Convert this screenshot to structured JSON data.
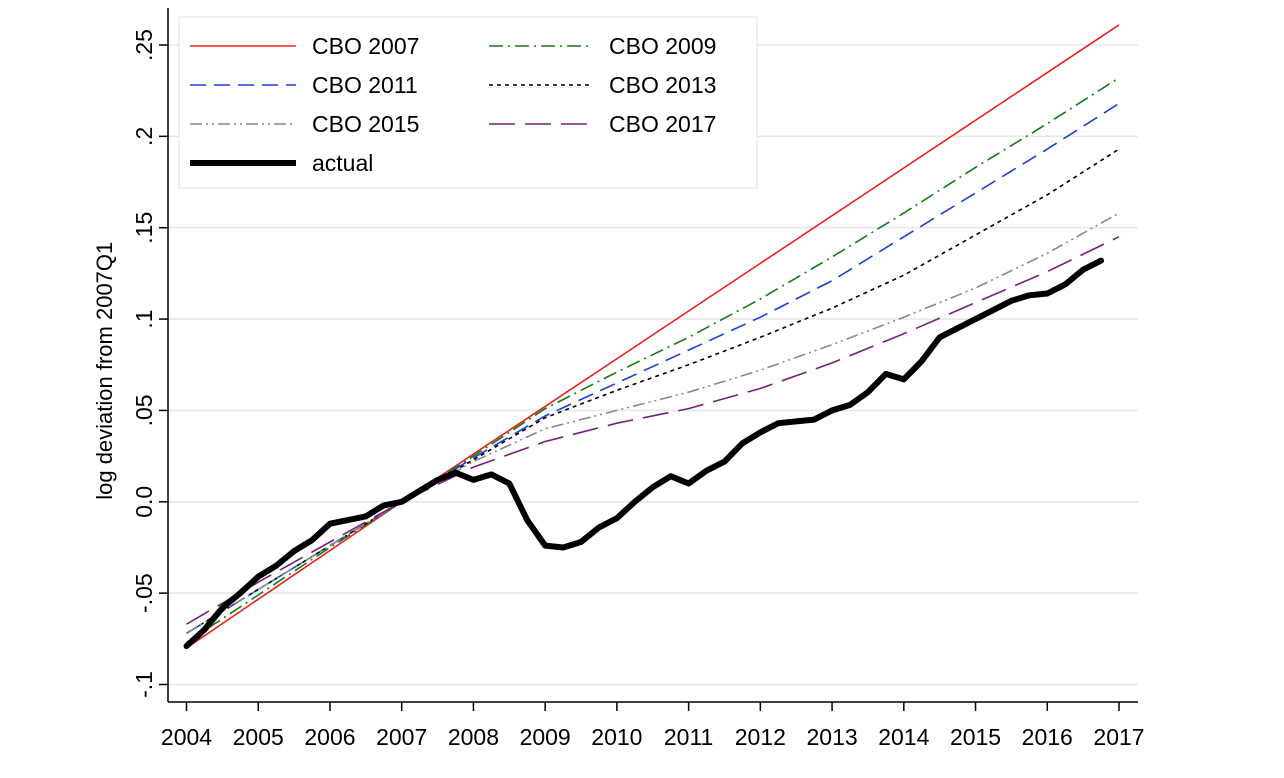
{
  "chart_data": {
    "type": "line",
    "title": "",
    "xlabel": "",
    "ylabel": "log deviation from 2007Q1",
    "xlim": [
      2004,
      2017
    ],
    "ylim": [
      -0.1,
      0.25
    ],
    "x_ticks": [
      2004,
      2005,
      2006,
      2007,
      2008,
      2009,
      2010,
      2011,
      2012,
      2013,
      2014,
      2015,
      2016,
      2017
    ],
    "x_tick_labels": [
      "2004",
      "2005",
      "2006",
      "2007",
      "2008",
      "2009",
      "2010",
      "2011",
      "2012",
      "2013",
      "2014",
      "2015",
      "2016",
      "2017"
    ],
    "y_ticks": [
      -0.1,
      -0.05,
      0,
      0.05,
      0.1,
      0.15,
      0.2,
      0.25
    ],
    "y_tick_labels": [
      "-.1",
      "-.05",
      "0.0",
      ".05",
      ".1",
      ".15",
      ".2",
      ".25"
    ],
    "grid": "horizontal",
    "legend_position": "top-left",
    "series": [
      {
        "name": "CBO 2007",
        "color": "#e8231b",
        "dash": "solid",
        "width": 1.6,
        "x": [
          2004,
          2007,
          2017
        ],
        "y": [
          -0.08,
          0.0,
          0.261
        ]
      },
      {
        "name": "CBO 2009",
        "color": "#157a15",
        "dash": "dashdot",
        "width": 1.6,
        "x": [
          2004,
          2005,
          2006,
          2007,
          2008,
          2009,
          2010,
          2011,
          2012,
          2013,
          2014,
          2015,
          2016,
          2017
        ],
        "y": [
          -0.077,
          -0.051,
          -0.025,
          0.0,
          0.025,
          0.051,
          0.071,
          0.09,
          0.111,
          0.134,
          0.158,
          0.183,
          0.207,
          0.232
        ]
      },
      {
        "name": "CBO 2011",
        "color": "#1c3fdc",
        "dash": "dash",
        "width": 1.6,
        "x": [
          2004,
          2005,
          2006,
          2007,
          2008,
          2009,
          2010,
          2011,
          2012,
          2013,
          2014,
          2015,
          2016,
          2017
        ],
        "y": [
          -0.072,
          -0.048,
          -0.024,
          0.0,
          0.024,
          0.047,
          0.065,
          0.083,
          0.101,
          0.121,
          0.145,
          0.169,
          0.193,
          0.218
        ]
      },
      {
        "name": "CBO 2013",
        "color": "#000000",
        "dash": "shortdash",
        "width": 1.6,
        "x": [
          2004,
          2005,
          2006,
          2007,
          2008,
          2009,
          2010,
          2011,
          2012,
          2013,
          2014,
          2015,
          2016,
          2017
        ],
        "y": [
          -0.072,
          -0.048,
          -0.024,
          0.0,
          0.023,
          0.046,
          0.061,
          0.075,
          0.09,
          0.106,
          0.124,
          0.146,
          0.168,
          0.193
        ]
      },
      {
        "name": "CBO 2015",
        "color": "#7f8c8a",
        "dash": "dashdotdot",
        "width": 1.6,
        "x": [
          2004,
          2005,
          2006,
          2007,
          2008,
          2009,
          2010,
          2011,
          2012,
          2013,
          2014,
          2015,
          2016,
          2017
        ],
        "y": [
          -0.072,
          -0.048,
          -0.024,
          0.0,
          0.022,
          0.04,
          0.05,
          0.06,
          0.072,
          0.086,
          0.101,
          0.117,
          0.136,
          0.158
        ]
      },
      {
        "name": "CBO 2017",
        "color": "#7a1e80",
        "dash": "longdash",
        "width": 1.6,
        "x": [
          2004,
          2005,
          2006,
          2007,
          2008,
          2009,
          2010,
          2011,
          2012,
          2013,
          2014,
          2015,
          2016,
          2017
        ],
        "y": [
          -0.067,
          -0.044,
          -0.022,
          0.0,
          0.019,
          0.033,
          0.043,
          0.051,
          0.062,
          0.076,
          0.092,
          0.109,
          0.126,
          0.145
        ]
      },
      {
        "name": "actual",
        "color": "#000000",
        "dash": "solid",
        "width": 6,
        "x": [
          2004,
          2004.25,
          2004.5,
          2004.75,
          2005,
          2005.25,
          2005.5,
          2005.75,
          2006,
          2006.25,
          2006.5,
          2006.75,
          2007,
          2007.25,
          2007.5,
          2007.75,
          2008,
          2008.25,
          2008.5,
          2008.75,
          2009,
          2009.25,
          2009.5,
          2009.75,
          2010,
          2010.25,
          2010.5,
          2010.75,
          2011,
          2011.25,
          2011.5,
          2011.75,
          2012,
          2012.25,
          2012.5,
          2012.75,
          2013,
          2013.25,
          2013.5,
          2013.75,
          2014,
          2014.25,
          2014.5,
          2014.75,
          2015,
          2015.25,
          2015.5,
          2015.75,
          2016,
          2016.25,
          2016.5,
          2016.75
        ],
        "y": [
          -0.079,
          -0.07,
          -0.058,
          -0.05,
          -0.041,
          -0.035,
          -0.027,
          -0.021,
          -0.012,
          -0.01,
          -0.008,
          -0.002,
          0.0,
          0.006,
          0.012,
          0.016,
          0.012,
          0.015,
          0.01,
          -0.01,
          -0.024,
          -0.025,
          -0.022,
          -0.014,
          -0.009,
          0.0,
          0.008,
          0.014,
          0.01,
          0.017,
          0.022,
          0.032,
          0.038,
          0.043,
          0.044,
          0.045,
          0.05,
          0.053,
          0.06,
          0.07,
          0.067,
          0.077,
          0.09,
          0.095,
          0.1,
          0.105,
          0.11,
          0.113,
          0.114,
          0.119,
          0.127,
          0.132
        ]
      }
    ]
  }
}
